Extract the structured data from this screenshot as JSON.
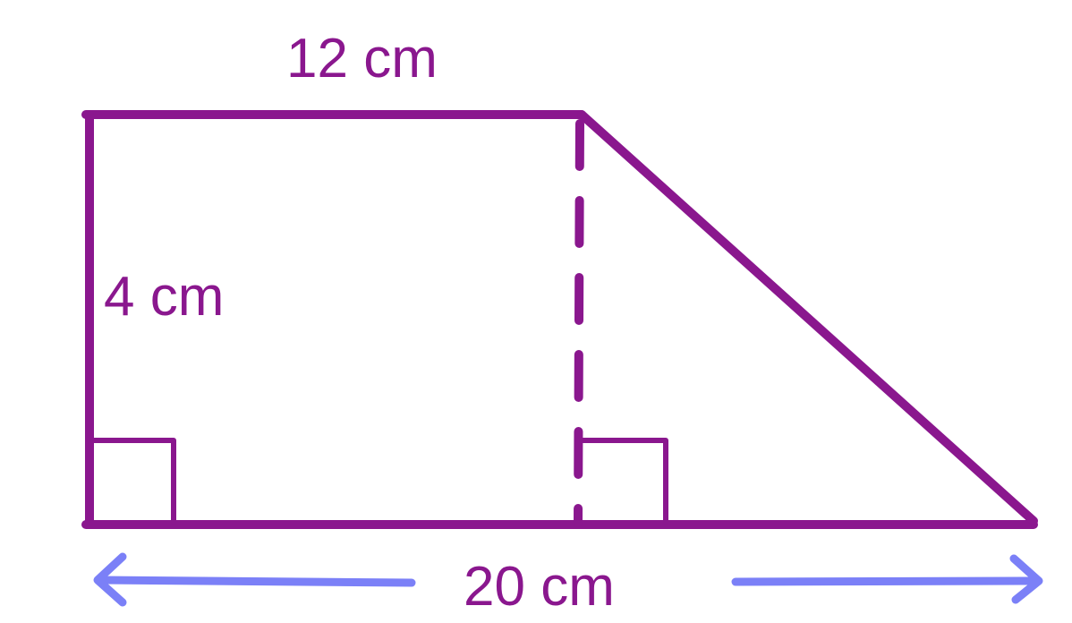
{
  "diagram": {
    "shape": "trapezoid",
    "labels": {
      "top": "12 cm",
      "height": "4 cm",
      "bottom": "20 cm"
    },
    "colors": {
      "shape_stroke": "#8a178e",
      "label_text": "#8a178e",
      "arrow": "#7b80f7"
    }
  }
}
